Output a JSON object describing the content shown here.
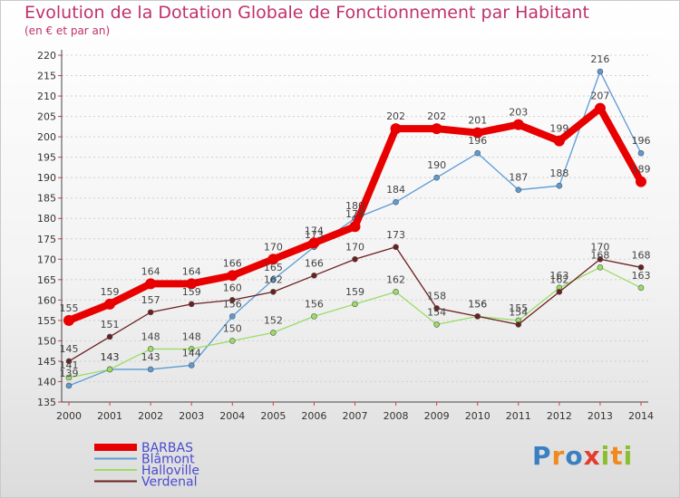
{
  "title": "Evolution de la Dotation Globale de Fonctionnement par Habitant",
  "subtitle": "(en € et par an)",
  "logo_text": "Proxiti",
  "chart_data": {
    "type": "line",
    "x": [
      "2000",
      "2001",
      "2002",
      "2003",
      "2004",
      "2005",
      "2006",
      "2007",
      "2008",
      "2009",
      "2010",
      "2011",
      "2012",
      "2013",
      "2014"
    ],
    "ylim": [
      135,
      220
    ],
    "yticks": [
      135,
      140,
      145,
      150,
      155,
      160,
      165,
      170,
      175,
      180,
      185,
      190,
      195,
      200,
      205,
      210,
      215,
      220
    ],
    "grid": "horizontal-dashed",
    "legend_position": "bottom-left",
    "series": [
      {
        "name": "BARBAS",
        "color": "#e80000",
        "values": [
          155,
          159,
          164,
          164,
          166,
          170,
          174,
          178,
          202,
          202,
          201,
          203,
          199,
          207,
          189
        ]
      },
      {
        "name": "Blâmont",
        "color": "#5b9bd5",
        "values": [
          139,
          143,
          143,
          144,
          156,
          165,
          173,
          180,
          184,
          190,
          196,
          187,
          188,
          216,
          196
        ]
      },
      {
        "name": "Halloville",
        "color": "#99dd66",
        "values": [
          141,
          143,
          148,
          148,
          150,
          152,
          156,
          159,
          162,
          154,
          156,
          155,
          163,
          168,
          163
        ]
      },
      {
        "name": "Verdenal",
        "color": "#6b1f1f",
        "values": [
          145,
          151,
          157,
          159,
          160,
          162,
          166,
          170,
          173,
          158,
          156,
          154,
          162,
          170,
          168
        ]
      }
    ]
  }
}
